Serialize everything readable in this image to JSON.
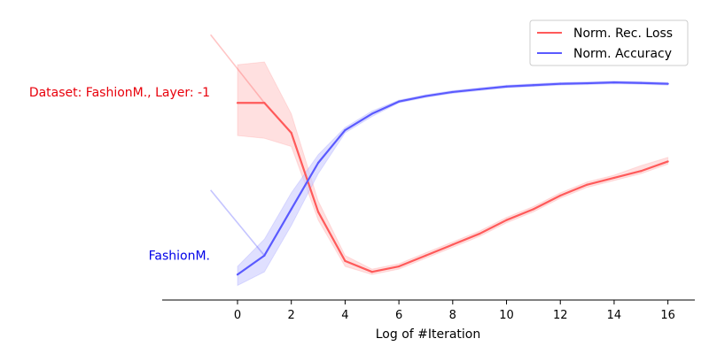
{
  "chart_data": {
    "type": "line",
    "xlabel": "Log of #Iteration",
    "ylabel": "",
    "xlim": [
      -2.8,
      17
    ],
    "ylim": [
      0,
      1
    ],
    "x_ticks": [
      0,
      2,
      4,
      6,
      8,
      10,
      12,
      14,
      16
    ],
    "grid": false,
    "legend_position": "top-right",
    "x": [
      0,
      1,
      2,
      3,
      4,
      5,
      6,
      7,
      8,
      9,
      10,
      11,
      12,
      13,
      14,
      15,
      16
    ],
    "series": [
      {
        "name": "Norm. Rec. Loss",
        "color": "#ff5a5a",
        "band_color": "#ffcccc",
        "values": [
          0.72,
          0.72,
          0.61,
          0.32,
          0.14,
          0.1,
          0.12,
          0.16,
          0.2,
          0.24,
          0.29,
          0.33,
          0.38,
          0.42,
          0.445,
          0.47,
          0.505
        ],
        "band_upper": [
          0.86,
          0.87,
          0.68,
          0.36,
          0.16,
          0.11,
          0.13,
          0.17,
          0.21,
          0.25,
          0.3,
          0.34,
          0.39,
          0.43,
          0.455,
          0.49,
          0.52
        ],
        "band_lower": [
          0.6,
          0.59,
          0.56,
          0.29,
          0.12,
          0.09,
          0.11,
          0.15,
          0.19,
          0.23,
          0.28,
          0.32,
          0.37,
          0.41,
          0.435,
          0.46,
          0.495
        ],
        "pre_segment": {
          "x": [
            -1,
            1
          ],
          "values": [
            0.97,
            0.72
          ]
        }
      },
      {
        "name": "Norm. Accuracy",
        "color": "#5a5aff",
        "band_color": "#ccccff",
        "values": [
          0.09,
          0.16,
          0.33,
          0.5,
          0.62,
          0.68,
          0.725,
          0.745,
          0.76,
          0.77,
          0.78,
          0.785,
          0.79,
          0.792,
          0.795,
          0.793,
          0.79
        ],
        "band_upper": [
          0.12,
          0.22,
          0.39,
          0.53,
          0.63,
          0.69,
          0.73,
          0.75,
          0.765,
          0.775,
          0.785,
          0.79,
          0.795,
          0.797,
          0.8,
          0.798,
          0.795
        ],
        "band_lower": [
          0.05,
          0.1,
          0.27,
          0.46,
          0.61,
          0.67,
          0.72,
          0.74,
          0.755,
          0.765,
          0.775,
          0.78,
          0.785,
          0.787,
          0.79,
          0.788,
          0.785
        ],
        "pre_segment": {
          "x": [
            -1,
            1
          ],
          "values": [
            0.4,
            0.16
          ]
        }
      }
    ],
    "annotations": [
      {
        "text": "Dataset: FashionM., Layer: -1",
        "color": "#e8000b",
        "y": 0.76
      },
      {
        "text": "FashionM.",
        "color": "#0000e8",
        "y": 0.16
      }
    ]
  }
}
